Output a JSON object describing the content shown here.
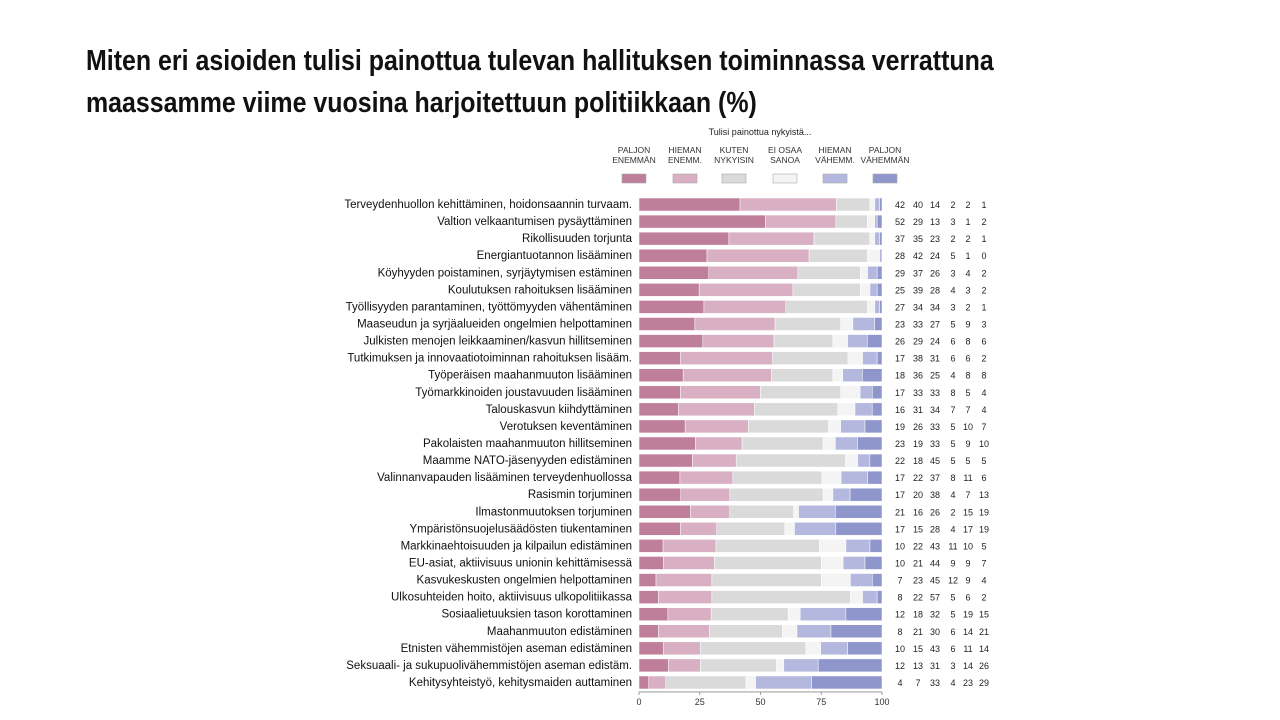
{
  "slide": {
    "title_line1": "Miten eri asioiden tulisi painottua tulevan hallituksen toiminnassa verrattuna",
    "title_line2": "maassamme viime vuosina harjoitettuun politiikkaan (%)"
  },
  "chart_data": {
    "type": "bar",
    "orientation": "horizontal",
    "stacked": true,
    "legend_title": "Tulisi painottua nykyistä...",
    "legend_position": "top",
    "xlim": [
      0,
      100
    ],
    "x_ticks": [
      0,
      25,
      50,
      75,
      100
    ],
    "grid": false,
    "series": [
      {
        "name": "PALJON ENEMMÄN",
        "label_lines": [
          "PALJON",
          "ENEMMÄN"
        ],
        "color": "#bf7f9b"
      },
      {
        "name": "HIEMAN ENEMM.",
        "label_lines": [
          "HIEMAN",
          "ENEMM."
        ],
        "color": "#d8afc3"
      },
      {
        "name": "KUTEN NYKYISIN",
        "label_lines": [
          "KUTEN",
          "NYKYISIN"
        ],
        "color": "#dadada"
      },
      {
        "name": "EI OSAA SANOA",
        "label_lines": [
          "EI OSAA",
          "SANOA"
        ],
        "color": "#f4f4f4"
      },
      {
        "name": "HIEMAN VÄHEMM.",
        "label_lines": [
          "HIEMAN",
          "VÄHEMM."
        ],
        "color": "#b4b8de"
      },
      {
        "name": "PALJON VÄHEMMÄN",
        "label_lines": [
          "PALJON",
          "VÄHEMMÄN"
        ],
        "color": "#8e96cc"
      }
    ],
    "categories": [
      {
        "label": "Terveydenhuollon kehittäminen, hoidonsaannin turvaam.",
        "values": [
          42,
          40,
          14,
          2,
          2,
          1
        ]
      },
      {
        "label": "Valtion velkaantumisen pysäyttäminen",
        "values": [
          52,
          29,
          13,
          3,
          1,
          2
        ]
      },
      {
        "label": "Rikollisuuden torjunta",
        "values": [
          37,
          35,
          23,
          2,
          2,
          1
        ]
      },
      {
        "label": "Energiantuotannon lisääminen",
        "values": [
          28,
          42,
          24,
          5,
          1,
          0
        ]
      },
      {
        "label": "Köyhyyden poistaminen, syrjäytymisen estäminen",
        "values": [
          29,
          37,
          26,
          3,
          4,
          2
        ]
      },
      {
        "label": "Koulutuksen rahoituksen lisääminen",
        "values": [
          25,
          39,
          28,
          4,
          3,
          2
        ]
      },
      {
        "label": "Työllisyyden parantaminen, työttömyyden vähentäminen",
        "values": [
          27,
          34,
          34,
          3,
          2,
          1
        ]
      },
      {
        "label": "Maaseudun ja syrjäalueiden ongelmien helpottaminen",
        "values": [
          23,
          33,
          27,
          5,
          9,
          3
        ]
      },
      {
        "label": "Julkisten menojen leikkaaminen/kasvun hillitseminen",
        "values": [
          26,
          29,
          24,
          6,
          8,
          6
        ]
      },
      {
        "label": "Tutkimuksen ja innovaatiotoiminnan rahoituksen lisääm.",
        "values": [
          17,
          38,
          31,
          6,
          6,
          2
        ]
      },
      {
        "label": "Työperäisen maahanmuuton lisääminen",
        "values": [
          18,
          36,
          25,
          4,
          8,
          8
        ]
      },
      {
        "label": "Työmarkkinoiden joustavuuden lisääminen",
        "values": [
          17,
          33,
          33,
          8,
          5,
          4
        ]
      },
      {
        "label": "Talouskasvun kiihdyttäminen",
        "values": [
          16,
          31,
          34,
          7,
          7,
          4
        ]
      },
      {
        "label": "Verotuksen keventäminen",
        "values": [
          19,
          26,
          33,
          5,
          10,
          7
        ]
      },
      {
        "label": "Pakolaisten maahanmuuton hillitseminen",
        "values": [
          23,
          19,
          33,
          5,
          9,
          10
        ]
      },
      {
        "label": "Maamme NATO-jäsenyyden edistäminen",
        "values": [
          22,
          18,
          45,
          5,
          5,
          5
        ]
      },
      {
        "label": "Valinnanvapauden lisääminen terveydenhuollossa",
        "values": [
          17,
          22,
          37,
          8,
          11,
          6
        ]
      },
      {
        "label": "Rasismin torjuminen",
        "values": [
          17,
          20,
          38,
          4,
          7,
          13
        ]
      },
      {
        "label": "Ilmastonmuutoksen torjuminen",
        "values": [
          21,
          16,
          26,
          2,
          15,
          19
        ]
      },
      {
        "label": "Ympäristönsuojelusäädösten tiukentaminen",
        "values": [
          17,
          15,
          28,
          4,
          17,
          19
        ]
      },
      {
        "label": "Markkinaehtoisuuden ja kilpailun edistäminen",
        "values": [
          10,
          22,
          43,
          11,
          10,
          5
        ]
      },
      {
        "label": "EU-asiat, aktiivisuus unionin kehittämisessä",
        "values": [
          10,
          21,
          44,
          9,
          9,
          7
        ]
      },
      {
        "label": "Kasvukeskusten ongelmien helpottaminen",
        "values": [
          7,
          23,
          45,
          12,
          9,
          4
        ]
      },
      {
        "label": "Ulkosuhteiden hoito, aktiivisuus ulkopolitiikassa",
        "values": [
          8,
          22,
          57,
          5,
          6,
          2
        ]
      },
      {
        "label": "Sosiaalietuuksien tason korottaminen",
        "values": [
          12,
          18,
          32,
          5,
          19,
          15
        ]
      },
      {
        "label": "Maahanmuuton edistäminen",
        "values": [
          8,
          21,
          30,
          6,
          14,
          21
        ]
      },
      {
        "label": "Etnisten vähemmistöjen aseman edistäminen",
        "values": [
          10,
          15,
          43,
          6,
          11,
          14
        ]
      },
      {
        "label": "Seksuaali- ja sukupuolivähemmistöjen aseman edistäm.",
        "values": [
          12,
          13,
          31,
          3,
          14,
          26
        ]
      },
      {
        "label": "Kehitysyhteistyö, kehitysmaiden auttaminen",
        "values": [
          4,
          7,
          33,
          4,
          23,
          29
        ]
      }
    ]
  }
}
